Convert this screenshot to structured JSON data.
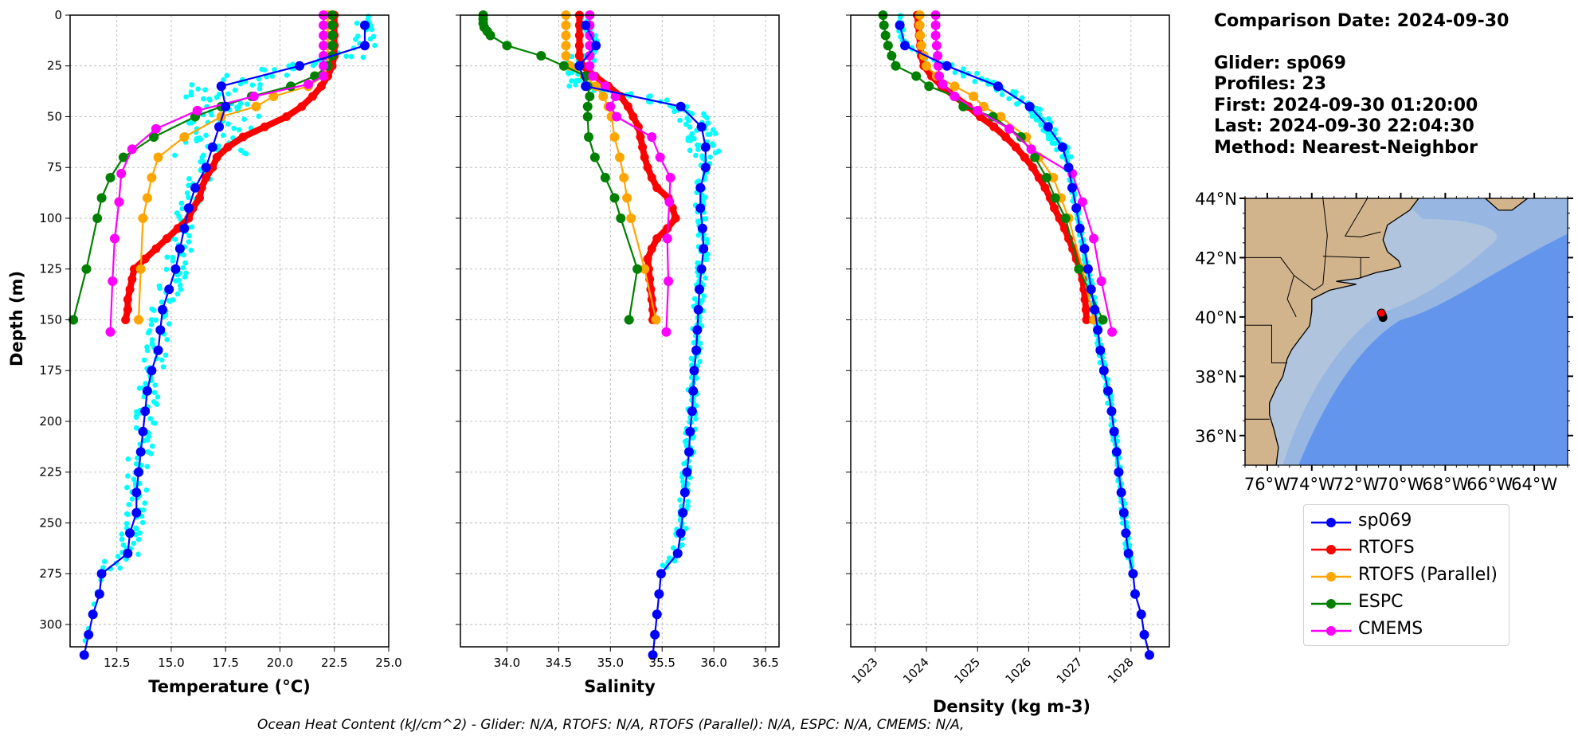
{
  "info": {
    "comparison_date": "Comparison Date: 2024-09-30",
    "glider": "Glider: sp069",
    "profiles": "Profiles: 23",
    "first": "First: 2024-09-30 01:20:00",
    "last": "Last: 2024-09-30 22:04:30",
    "method": "Method: Nearest-Neighbor"
  },
  "footer": "Ocean Heat Content (kJ/cm^2) - Glider: N/A,  RTOFS: N/A,  RTOFS (Parallel): N/A,  ESPC: N/A,  CMEMS: N/A,",
  "colors": {
    "glider": "#0000ff",
    "glider_raw": "#00ffff",
    "rtofs": "#ff0000",
    "rtofs_parallel": "#ffa500",
    "espc": "#008000",
    "cmems": "#ff00ff",
    "land": "#d2b48c",
    "shelf": "#b0c4de",
    "slope": "#97b6e1",
    "deep": "#6495ed"
  },
  "legend": [
    {
      "label": "sp069",
      "color": "#0000ff"
    },
    {
      "label": "RTOFS",
      "color": "#ff0000"
    },
    {
      "label": "RTOFS (Parallel)",
      "color": "#ffa500"
    },
    {
      "label": "ESPC",
      "color": "#008000"
    },
    {
      "label": "CMEMS",
      "color": "#ff00ff"
    }
  ],
  "chart_data": [
    {
      "type": "line",
      "title": "",
      "xlabel": "Temperature (°C)",
      "ylabel": "Depth (m)",
      "xlim": [
        10.35,
        25.0
      ],
      "ylim": [
        311,
        0
      ],
      "xticks": [
        "12.5",
        "15.0",
        "17.5",
        "20.0",
        "22.5",
        "25.0"
      ],
      "xtick_values": [
        12.5,
        15.0,
        17.5,
        20.0,
        22.5,
        25.0
      ],
      "yticks": [
        "0",
        "25",
        "50",
        "75",
        "100",
        "125",
        "150",
        "175",
        "200",
        "225",
        "250",
        "275",
        "300"
      ],
      "ytick_values": [
        0,
        25,
        50,
        75,
        100,
        125,
        150,
        175,
        200,
        225,
        250,
        275,
        300
      ],
      "grid": true,
      "series": [
        {
          "name": "sp069",
          "color": "#0000ff",
          "depth": [
            5,
            15,
            25,
            35,
            45,
            55,
            65,
            75,
            85,
            95,
            105,
            115,
            125,
            135,
            145,
            155,
            165,
            175,
            185,
            195,
            205,
            215,
            225,
            235,
            245,
            255,
            265,
            275,
            285,
            295,
            305,
            315
          ],
          "values": [
            23.9,
            23.9,
            20.9,
            17.3,
            17.5,
            17.2,
            16.9,
            16.6,
            16.1,
            15.8,
            15.6,
            15.4,
            15.2,
            14.9,
            14.6,
            14.5,
            14.4,
            14.1,
            13.9,
            13.8,
            13.7,
            13.6,
            13.5,
            13.4,
            13.4,
            13.1,
            13.0,
            11.8,
            11.7,
            11.4,
            11.2,
            11.0
          ]
        },
        {
          "name": "RTOFS",
          "color": "#ff0000",
          "depth": [
            0,
            5,
            10,
            15,
            20,
            25,
            30,
            35,
            40,
            45,
            50,
            55,
            60,
            65,
            70,
            75,
            80,
            85,
            90,
            95,
            100,
            105,
            110,
            115,
            120,
            125,
            130,
            135,
            140,
            145,
            150
          ],
          "values": [
            22.5,
            22.5,
            22.5,
            22.5,
            22.5,
            22.4,
            22.2,
            21.9,
            21.5,
            21.0,
            20.3,
            19.3,
            18.3,
            17.6,
            17.1,
            16.9,
            16.6,
            16.4,
            16.3,
            16.0,
            15.8,
            15.3,
            14.8,
            14.3,
            13.8,
            13.3,
            13.2,
            13.1,
            13.0,
            13.0,
            12.9
          ]
        },
        {
          "name": "RTOFS (Parallel)",
          "color": "#ffa500",
          "depth": [
            0,
            5,
            10,
            15,
            20,
            25,
            30,
            35,
            40,
            45,
            50,
            60,
            70,
            80,
            90,
            100,
            125,
            150
          ],
          "values": [
            22.2,
            22.2,
            22.2,
            22.2,
            22.2,
            22.2,
            22.0,
            21.3,
            19.7,
            18.9,
            17.3,
            15.6,
            14.4,
            14.1,
            13.9,
            13.7,
            13.6,
            13.5
          ]
        },
        {
          "name": "ESPC",
          "color": "#008000",
          "depth": [
            0,
            5,
            10,
            15,
            20,
            25,
            30,
            35,
            40,
            45,
            50,
            60,
            70,
            80,
            90,
            100,
            125,
            150
          ],
          "values": [
            22.4,
            22.4,
            22.4,
            22.4,
            22.4,
            22.2,
            21.6,
            20.5,
            18.7,
            17.3,
            16.1,
            14.2,
            12.8,
            12.2,
            11.8,
            11.6,
            11.1,
            10.5
          ]
        },
        {
          "name": "CMEMS",
          "color": "#ff00ff",
          "depth": [
            0,
            5,
            10,
            15,
            20,
            25,
            30,
            34,
            40,
            47,
            56,
            66,
            78,
            92,
            110,
            131,
            156
          ],
          "values": [
            22.0,
            22.0,
            22.0,
            22.0,
            22.0,
            22.0,
            22.0,
            21.3,
            18.8,
            16.2,
            14.3,
            13.2,
            12.7,
            12.6,
            12.4,
            12.3,
            12.2
          ]
        }
      ]
    },
    {
      "type": "line",
      "title": "",
      "xlabel": "Salinity",
      "ylabel": "",
      "xlim": [
        33.55,
        36.63
      ],
      "ylim": [
        311,
        0
      ],
      "xticks": [
        "34.0",
        "34.5",
        "35.0",
        "35.5",
        "36.0",
        "36.5"
      ],
      "xtick_values": [
        34.0,
        34.5,
        35.0,
        35.5,
        36.0,
        36.5
      ],
      "grid": true,
      "series": [
        {
          "name": "sp069",
          "color": "#0000ff",
          "depth": [
            5,
            15,
            25,
            35,
            45,
            55,
            65,
            75,
            85,
            95,
            105,
            115,
            125,
            135,
            145,
            155,
            165,
            175,
            185,
            195,
            205,
            215,
            225,
            235,
            245,
            255,
            265,
            275,
            285,
            295,
            305,
            315
          ],
          "values": [
            34.76,
            34.86,
            34.7,
            34.76,
            35.68,
            35.88,
            35.92,
            35.92,
            35.87,
            35.87,
            35.89,
            35.9,
            35.88,
            35.86,
            35.85,
            35.84,
            35.83,
            35.81,
            35.8,
            35.79,
            35.77,
            35.76,
            35.74,
            35.72,
            35.7,
            35.68,
            35.65,
            35.49,
            35.47,
            35.45,
            35.43,
            35.41
          ]
        },
        {
          "name": "RTOFS",
          "color": "#ff0000",
          "depth": [
            0,
            5,
            10,
            15,
            20,
            25,
            30,
            35,
            40,
            45,
            50,
            55,
            60,
            65,
            70,
            75,
            80,
            85,
            90,
            95,
            100,
            105,
            110,
            115,
            120,
            125,
            130,
            135,
            140,
            145,
            150
          ],
          "values": [
            34.7,
            34.7,
            34.7,
            34.7,
            34.7,
            34.73,
            34.85,
            34.98,
            35.1,
            35.17,
            35.22,
            35.27,
            35.29,
            35.31,
            35.33,
            35.36,
            35.4,
            35.45,
            35.56,
            35.6,
            35.63,
            35.55,
            35.45,
            35.4,
            35.36,
            35.37,
            35.38,
            35.39,
            35.4,
            35.41,
            35.41
          ]
        },
        {
          "name": "RTOFS (Parallel)",
          "color": "#ffa500",
          "depth": [
            0,
            5,
            10,
            15,
            20,
            25,
            30,
            35,
            40,
            45,
            50,
            60,
            70,
            80,
            90,
            100,
            125,
            150
          ],
          "values": [
            34.57,
            34.57,
            34.57,
            34.57,
            34.57,
            34.61,
            34.75,
            34.86,
            34.93,
            34.98,
            35.01,
            35.04,
            35.09,
            35.13,
            35.16,
            35.2,
            35.33,
            35.44
          ]
        },
        {
          "name": "ESPC",
          "color": "#008000",
          "depth": [
            0,
            2,
            4,
            6,
            8,
            10,
            15,
            20,
            25,
            30,
            35,
            40,
            45,
            50,
            60,
            70,
            80,
            90,
            100,
            125,
            150
          ],
          "values": [
            33.77,
            33.77,
            33.77,
            33.78,
            33.81,
            33.84,
            34.0,
            34.33,
            34.55,
            34.76,
            34.78,
            34.8,
            34.78,
            34.78,
            34.79,
            34.85,
            34.95,
            35.04,
            35.1,
            35.26,
            35.18
          ]
        },
        {
          "name": "CMEMS",
          "color": "#ff00ff",
          "depth": [
            0,
            5,
            10,
            15,
            20,
            25,
            30,
            35,
            40,
            45,
            50,
            60,
            70,
            80,
            92,
            110,
            131,
            156
          ],
          "values": [
            34.8,
            34.8,
            34.8,
            34.8,
            34.8,
            34.8,
            34.83,
            34.95,
            35.05,
            35.0,
            35.06,
            35.4,
            35.48,
            35.58,
            35.57,
            35.55,
            35.56,
            35.54
          ]
        }
      ]
    },
    {
      "type": "line",
      "title": "",
      "xlabel": "Density (kg m-3)",
      "ylabel": "",
      "xlim": [
        1022.52,
        1028.75
      ],
      "ylim": [
        311,
        0
      ],
      "xticks": [
        "1023",
        "1024",
        "1025",
        "1026",
        "1027",
        "1028"
      ],
      "xtick_values": [
        1023,
        1024,
        1025,
        1026,
        1027,
        1028
      ],
      "grid": true,
      "series": [
        {
          "name": "sp069",
          "color": "#0000ff",
          "depth": [
            5,
            15,
            25,
            35,
            45,
            55,
            65,
            75,
            85,
            95,
            105,
            115,
            125,
            135,
            145,
            155,
            165,
            175,
            185,
            195,
            205,
            215,
            225,
            235,
            245,
            255,
            265,
            275,
            285,
            295,
            305,
            315
          ],
          "values": [
            1023.48,
            1023.58,
            1024.4,
            1025.4,
            1026.02,
            1026.38,
            1026.66,
            1026.78,
            1026.85,
            1026.93,
            1027.0,
            1027.09,
            1027.16,
            1027.22,
            1027.29,
            1027.35,
            1027.4,
            1027.47,
            1027.55,
            1027.62,
            1027.67,
            1027.72,
            1027.76,
            1027.81,
            1027.86,
            1027.9,
            1027.95,
            1028.04,
            1028.08,
            1028.2,
            1028.26,
            1028.36
          ]
        },
        {
          "name": "RTOFS",
          "color": "#ff0000",
          "depth": [
            0,
            5,
            10,
            15,
            20,
            25,
            30,
            35,
            40,
            45,
            50,
            55,
            60,
            65,
            70,
            75,
            80,
            85,
            90,
            95,
            100,
            105,
            110,
            115,
            120,
            125,
            130,
            135,
            140,
            145,
            150
          ],
          "values": [
            1023.82,
            1023.84,
            1023.86,
            1023.88,
            1023.9,
            1023.95,
            1024.1,
            1024.3,
            1024.55,
            1024.82,
            1025.05,
            1025.32,
            1025.55,
            1025.75,
            1025.92,
            1026.08,
            1026.2,
            1026.32,
            1026.42,
            1026.5,
            1026.6,
            1026.7,
            1026.78,
            1026.86,
            1026.93,
            1027.0,
            1027.05,
            1027.08,
            1027.1,
            1027.12,
            1027.13
          ]
        },
        {
          "name": "RTOFS (Parallel)",
          "color": "#ffa500",
          "depth": [
            0,
            5,
            10,
            15,
            20,
            25,
            30,
            35,
            40,
            45,
            50,
            60,
            70,
            80,
            90,
            100,
            125,
            150
          ],
          "values": [
            1023.87,
            1023.87,
            1023.88,
            1023.9,
            1023.95,
            1024.0,
            1024.2,
            1024.55,
            1024.92,
            1025.12,
            1025.45,
            1025.95,
            1026.2,
            1026.48,
            1026.63,
            1026.78,
            1027.05,
            1027.27
          ]
        },
        {
          "name": "ESPC",
          "color": "#008000",
          "depth": [
            0,
            5,
            10,
            15,
            20,
            25,
            30,
            35,
            40,
            45,
            50,
            60,
            70,
            80,
            90,
            100,
            125,
            150
          ],
          "values": [
            1023.15,
            1023.17,
            1023.2,
            1023.25,
            1023.32,
            1023.4,
            1023.8,
            1024.05,
            1024.55,
            1024.72,
            1025.3,
            1025.85,
            1026.12,
            1026.35,
            1026.52,
            1026.72,
            1026.98,
            1027.45
          ]
        },
        {
          "name": "CMEMS",
          "color": "#ff00ff",
          "depth": [
            0,
            5,
            10,
            15,
            20,
            25,
            30,
            34,
            40,
            47,
            56,
            66,
            78,
            92,
            110,
            131,
            156
          ],
          "values": [
            1024.18,
            1024.18,
            1024.18,
            1024.2,
            1024.22,
            1024.23,
            1024.25,
            1024.32,
            1024.55,
            1025.0,
            1025.62,
            1026.05,
            1026.85,
            1027.05,
            1027.27,
            1027.42,
            1027.63
          ]
        }
      ]
    },
    {
      "type": "map",
      "title": "",
      "lon_range": [
        -77.0,
        -62.5
      ],
      "lat_range": [
        35.0,
        44.0
      ],
      "xticks": [
        "76°W",
        "74°W",
        "72°W",
        "70°W",
        "68°W",
        "66°W",
        "64°W"
      ],
      "xtick_values": [
        -76,
        -74,
        -72,
        -70,
        -68,
        -66,
        -64
      ],
      "yticks": [
        "44°N",
        "42°N",
        "40°N",
        "38°N",
        "36°N"
      ],
      "ytick_values": [
        44,
        42,
        40,
        38,
        36
      ],
      "glider_positions": [
        {
          "lon": -70.87,
          "lat": 40.13,
          "marker": "start",
          "color": "#ff0000"
        },
        {
          "lon": -70.82,
          "lat": 40.04,
          "marker": "track",
          "color": "#000000"
        },
        {
          "lon": -70.8,
          "lat": 39.98,
          "marker": "track",
          "color": "#000000"
        }
      ]
    }
  ]
}
